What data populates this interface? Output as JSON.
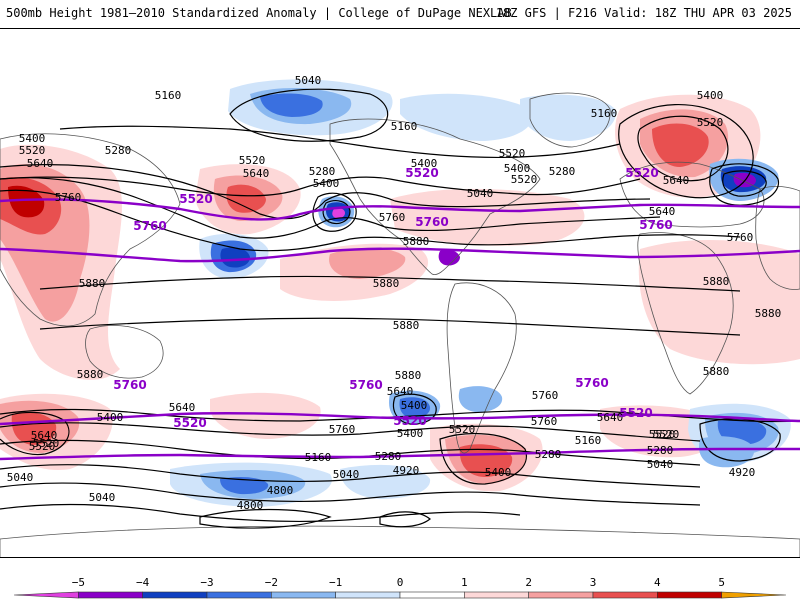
{
  "header": {
    "title_left": "500mb Height 1981–2010 Standardized Anomaly | College of DuPage NEXLAB",
    "title_right": "18Z GFS | F216 Valid: 18Z THU APR 03 2025"
  },
  "colors": {
    "height_contour": "#000000",
    "highlight_contour": "#8a00c8",
    "coastline": "#555555"
  },
  "legend": {
    "ticks": [
      "−5",
      "−4",
      "−3",
      "−2",
      "−1",
      "0",
      "1",
      "2",
      "3",
      "4",
      "5"
    ],
    "colors": [
      "#e040e0",
      "#8a00c8",
      "#1040c0",
      "#3a70e0",
      "#8ab8f0",
      "#d0e4fa",
      "#ffffff",
      "#fdd8d8",
      "#f5a0a0",
      "#e85050",
      "#c00000",
      "#f0a000"
    ]
  },
  "contour_labels": [
    {
      "t": "5160"
    },
    {
      "t": "5040"
    },
    {
      "t": "5400"
    },
    {
      "t": "5520"
    },
    {
      "t": "5640"
    },
    {
      "t": "5280"
    },
    {
      "t": "5760"
    },
    {
      "t": "5520"
    },
    {
      "t": "5640"
    },
    {
      "t": "5400"
    },
    {
      "t": "5280"
    },
    {
      "t": "5160"
    },
    {
      "t": "5160"
    },
    {
      "t": "5400"
    },
    {
      "t": "5520"
    },
    {
      "t": "5280"
    },
    {
      "t": "5040"
    },
    {
      "t": "5760"
    },
    {
      "t": "5640"
    },
    {
      "t": "5400"
    },
    {
      "t": "5520"
    },
    {
      "t": "5880"
    },
    {
      "t": "5880"
    },
    {
      "t": "5880"
    },
    {
      "t": "5760"
    },
    {
      "t": "5880"
    },
    {
      "t": "5880"
    },
    {
      "t": "5880"
    },
    {
      "t": "5880"
    },
    {
      "t": "5880"
    },
    {
      "t": "5880"
    },
    {
      "t": "5640"
    },
    {
      "t": "5400"
    },
    {
      "t": "5760"
    },
    {
      "t": "5520"
    },
    {
      "t": "5040"
    },
    {
      "t": "5400"
    },
    {
      "t": "5640"
    },
    {
      "t": "5520"
    },
    {
      "t": "5640"
    },
    {
      "t": "5400"
    },
    {
      "t": "5280"
    },
    {
      "t": "5040"
    },
    {
      "t": "5160"
    },
    {
      "t": "5280"
    },
    {
      "t": "5040"
    },
    {
      "t": "4920"
    },
    {
      "t": "4800"
    },
    {
      "t": "4800"
    },
    {
      "t": "5520"
    },
    {
      "t": "5640"
    },
    {
      "t": "5520"
    },
    {
      "t": "5400"
    },
    {
      "t": "5760"
    },
    {
      "t": "5400"
    },
    {
      "t": "5520"
    },
    {
      "t": "5160"
    },
    {
      "t": "5280"
    },
    {
      "t": "5040"
    },
    {
      "t": "4920"
    },
    {
      "t": "5640"
    },
    {
      "t": "5520"
    },
    {
      "t": "5760"
    }
  ],
  "highlight_labels": [
    {
      "t": "5520"
    },
    {
      "t": "5760"
    },
    {
      "t": "5520"
    },
    {
      "t": "5760"
    },
    {
      "t": "5520"
    },
    {
      "t": "5760"
    },
    {
      "t": "5760"
    },
    {
      "t": "5520"
    },
    {
      "t": "5760"
    },
    {
      "t": "5520"
    },
    {
      "t": "5760"
    },
    {
      "t": "5520"
    }
  ]
}
